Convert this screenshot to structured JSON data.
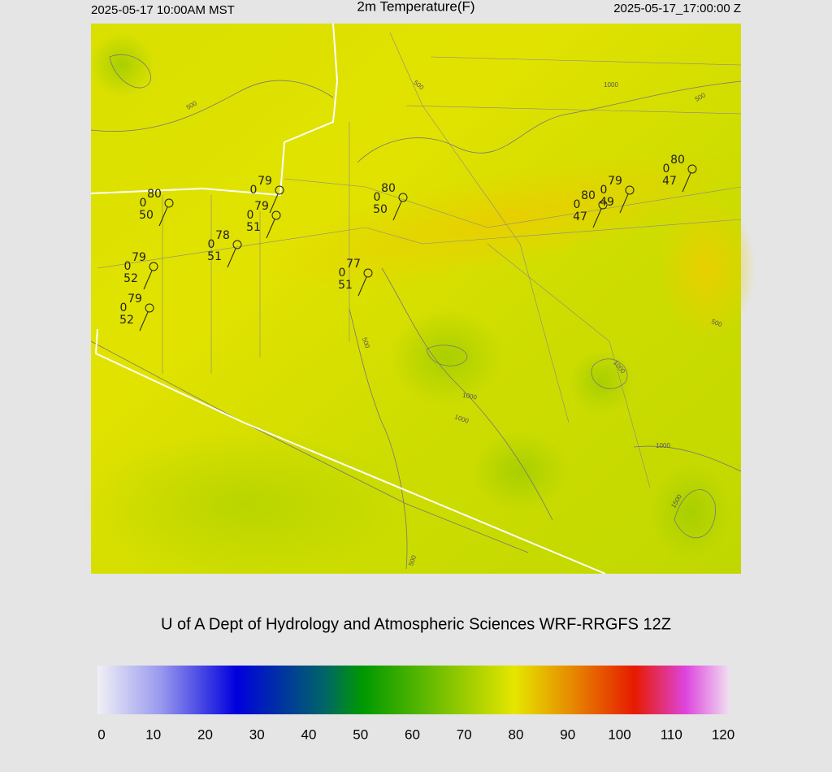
{
  "header": {
    "left": "2025-05-17 10:00AM MST",
    "title": "2m Temperature(F)",
    "right": "2025-05-17_17:00:00 Z"
  },
  "map": {
    "contour_labels": [
      500,
      500,
      1000,
      500,
      500,
      500,
      1000,
      1000,
      1000,
      1000,
      1500,
      500
    ],
    "stations": [
      {
        "temperature": 80,
        "wind": 0,
        "dewpoint": 50
      },
      {
        "temperature": 79,
        "wind": 0,
        "dewpoint": 52
      },
      {
        "temperature": 79,
        "wind": 0,
        "dewpoint": 52
      },
      {
        "temperature": 78,
        "wind": 0,
        "dewpoint": 51
      },
      {
        "temperature": 79,
        "wind": 0,
        "dewpoint": 51
      },
      {
        "temperature": 79,
        "wind": 0
      },
      {
        "temperature": 77,
        "wind": 0,
        "dewpoint": 51
      },
      {
        "temperature": 80,
        "wind": 0,
        "dewpoint": 50
      },
      {
        "temperature": 80,
        "wind": 0,
        "dewpoint": 47
      },
      {
        "temperature": 79,
        "wind": 0,
        "dewpoint": 49
      },
      {
        "temperature": 80,
        "wind": 0,
        "dewpoint": 47
      }
    ]
  },
  "credit": "U of A Dept of Hydrology and Atmospheric Sciences WRF-RRGFS 12Z",
  "colorbar": {
    "ticks": [
      0,
      10,
      20,
      30,
      40,
      50,
      60,
      70,
      80,
      90,
      100,
      110,
      120
    ]
  }
}
